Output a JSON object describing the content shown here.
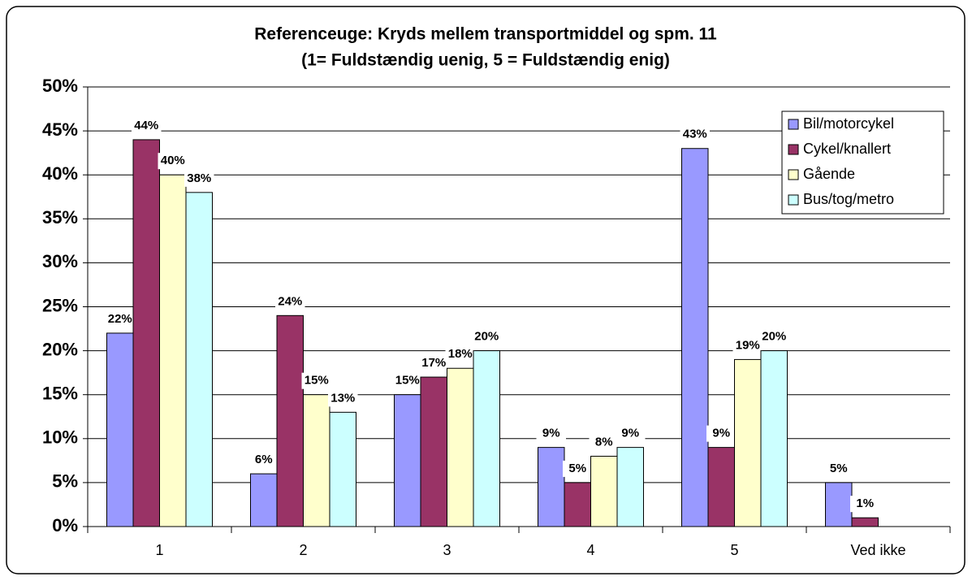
{
  "chart_data": {
    "type": "bar",
    "title": "Referenceuge: Kryds mellem transportmiddel og spm. 11",
    "subtitle": "(1= Fuldstændig uenig, 5 = Fuldstændig enig)",
    "categories": [
      "1",
      "2",
      "3",
      "4",
      "5",
      "Ved ikke"
    ],
    "series": [
      {
        "name": "Bil/motorcykel",
        "color": "#9999ff",
        "values": [
          22,
          6,
          15,
          9,
          43,
          5
        ],
        "value_labels": [
          "22%",
          "6%",
          "15%",
          "9%",
          "43%",
          "5%"
        ]
      },
      {
        "name": "Cykel/knallert",
        "color": "#993366",
        "values": [
          44,
          24,
          17,
          5,
          9,
          1
        ],
        "value_labels": [
          "44%",
          "24%",
          "17%",
          "5%",
          "9%",
          "1%"
        ]
      },
      {
        "name": "Gående",
        "color": "#ffffcc",
        "values": [
          40,
          15,
          18,
          8,
          19,
          null
        ],
        "value_labels": [
          "40%",
          "15%",
          "18%",
          "8%",
          "19%",
          null
        ]
      },
      {
        "name": "Bus/tog/metro",
        "color": "#ccffff",
        "values": [
          38,
          13,
          20,
          9,
          20,
          null
        ],
        "value_labels": [
          "38%",
          "13%",
          "20%",
          "9%",
          "20%",
          null
        ]
      }
    ],
    "ylim": [
      0,
      50
    ],
    "yticks": [
      {
        "value": 0,
        "label": "0%"
      },
      {
        "value": 5,
        "label": "5%"
      },
      {
        "value": 10,
        "label": "10%"
      },
      {
        "value": 15,
        "label": "15%"
      },
      {
        "value": 20,
        "label": "20%"
      },
      {
        "value": 25,
        "label": "25%"
      },
      {
        "value": 30,
        "label": "30%"
      },
      {
        "value": 35,
        "label": "35%"
      },
      {
        "value": 40,
        "label": "40%"
      },
      {
        "value": 45,
        "label": "45%"
      },
      {
        "value": 50,
        "label": "50%"
      }
    ],
    "grid": true,
    "legend": "top-right"
  }
}
